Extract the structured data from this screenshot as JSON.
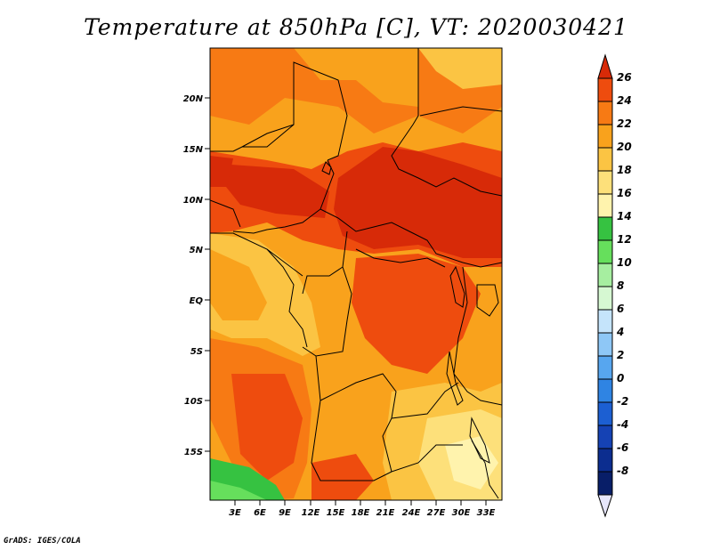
{
  "title": "Temperature at 850hPa [C], VT: 2020030421",
  "footer": "GrADS: IGES/COLA",
  "map": {
    "variable": "Temperature at 850hPa",
    "units": "C",
    "valid_time": "2020030421",
    "lat_labels": [
      "20N",
      "15N",
      "10N",
      "5N",
      "EQ",
      "5S",
      "10S",
      "15S"
    ],
    "lon_labels": [
      "3E",
      "6E",
      "9E",
      "12E",
      "15E",
      "18E",
      "21E",
      "24E",
      "27E",
      "30E",
      "33E"
    ]
  },
  "colorbar": {
    "labels": [
      "26",
      "24",
      "22",
      "20",
      "18",
      "16",
      "14",
      "12",
      "10",
      "8",
      "6",
      "4",
      "2",
      "0",
      "-2",
      "-4",
      "-6",
      "-8"
    ],
    "colors_top_to_bottom": [
      "#d72a08",
      "#ee4c0e",
      "#f77a14",
      "#f9a21c",
      "#fbc443",
      "#fde07a",
      "#fff3ad",
      "#36c241",
      "#66df5c",
      "#a6eea0",
      "#d6f8d2",
      "#c5e4fb",
      "#8ec7f6",
      "#57a6ef",
      "#2f84e3",
      "#1c5fd2",
      "#1542b4",
      "#0c2d8f",
      "#081e68",
      "#e6e6fb"
    ]
  }
}
